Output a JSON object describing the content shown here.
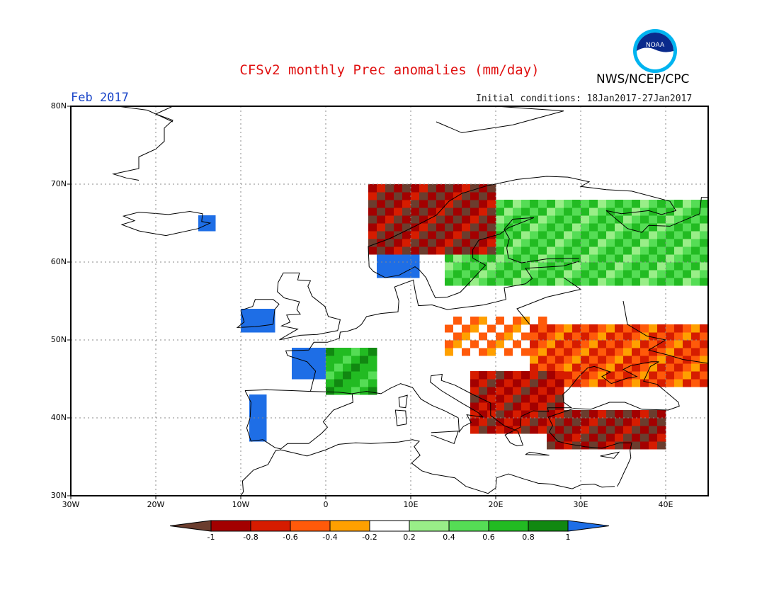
{
  "header": {
    "title": "CFSv2 monthly Prec anomalies (mm/day)",
    "organization": "NWS/NCEP/CPC",
    "month": "Feb 2017",
    "initial_conditions": "Initial conditions: 18Jan2017-27Jan2017",
    "logo_text": "NOAA"
  },
  "axes": {
    "lat_labels": [
      "80N",
      "70N",
      "60N",
      "50N",
      "40N",
      "30N"
    ],
    "lon_labels": [
      "30W",
      "20W",
      "10W",
      "0",
      "10E",
      "20E",
      "30E",
      "40E"
    ]
  },
  "colorbar": {
    "labels": [
      "-1",
      "-0.8",
      "-0.6",
      "-0.4",
      "-0.2",
      "0.2",
      "0.4",
      "0.6",
      "0.8",
      "1"
    ],
    "colors": [
      "#6b3d2e",
      "#a30000",
      "#d61c00",
      "#ff5a0a",
      "#ffa000",
      "#ffffff",
      "#99ee88",
      "#55dd55",
      "#22bb22",
      "#118811",
      "#1e6ee6"
    ]
  },
  "chart_data": {
    "type": "heatmap",
    "title": "CFSv2 monthly Prec anomalies (mm/day)",
    "units": "mm/day",
    "lon_range": [
      -30,
      45
    ],
    "lat_range": [
      30,
      80
    ],
    "regions": [
      {
        "name": "Iberia west",
        "lon": [
          -9,
          -7
        ],
        "lat": [
          37,
          43
        ],
        "anomaly": 1.0
      },
      {
        "name": "Ireland",
        "lon": [
          -10,
          -6
        ],
        "lat": [
          51,
          54
        ],
        "anomaly": 1.0
      },
      {
        "name": "France west",
        "lon": [
          -4,
          0
        ],
        "lat": [
          45,
          49
        ],
        "anomaly": 1.0
      },
      {
        "name": "France central",
        "lon": [
          0,
          6
        ],
        "lat": [
          43,
          49
        ],
        "anomaly": 0.7
      },
      {
        "name": "Scandinavia south",
        "lon": [
          6,
          11
        ],
        "lat": [
          58,
          62
        ],
        "anomaly": 1.0
      },
      {
        "name": "Finland and NW Russia",
        "lon": [
          14,
          45
        ],
        "lat": [
          57,
          68
        ],
        "anomaly": 0.5
      },
      {
        "name": "Poland and Belarus",
        "lon": [
          14,
          26
        ],
        "lat": [
          48,
          53
        ],
        "anomaly": -0.3
      },
      {
        "name": "Ukraine and south Russia",
        "lon": [
          24,
          45
        ],
        "lat": [
          44,
          52
        ],
        "anomaly": -0.5
      },
      {
        "name": "Balkans",
        "lon": [
          17,
          28
        ],
        "lat": [
          38,
          46
        ],
        "anomaly": -0.8
      },
      {
        "name": "Turkey",
        "lon": [
          26,
          40
        ],
        "lat": [
          36,
          41
        ],
        "anomaly": -0.9
      },
      {
        "name": "Norway coast",
        "lon": [
          5,
          20
        ],
        "lat": [
          61,
          70
        ],
        "anomaly": -0.9
      },
      {
        "name": "Iceland east",
        "lon": [
          -15,
          -13
        ],
        "lat": [
          64,
          66
        ],
        "anomaly": 1.0
      }
    ]
  }
}
